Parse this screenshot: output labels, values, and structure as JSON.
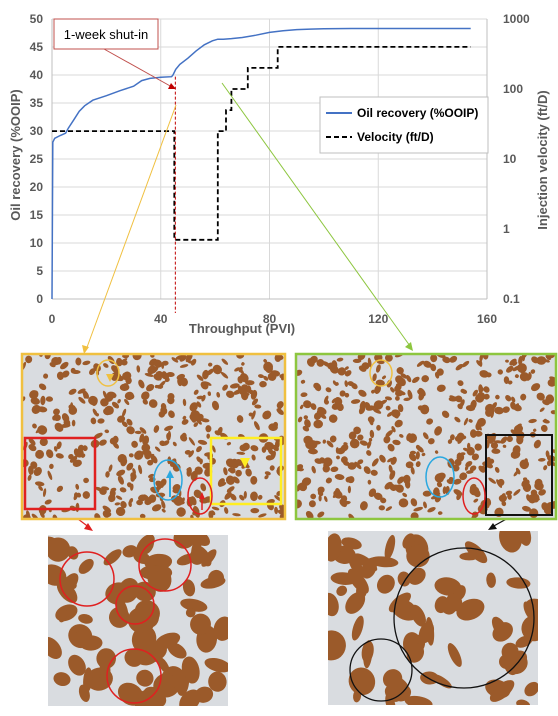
{
  "chart_data": {
    "type": "line",
    "title": "",
    "xlabel": "Throughput (PVI)",
    "ylabel": "Oil  recovery (%OOIP)",
    "y2label": "Injection velocity (ft/D)",
    "xlim": [
      0,
      160
    ],
    "ylim": [
      0,
      50
    ],
    "y2lim": [
      0.1,
      1000
    ],
    "y2scale": "log",
    "x_ticks": [
      "0",
      "40",
      "80",
      "120",
      "160"
    ],
    "y_ticks": [
      "0",
      "5",
      "10",
      "15",
      "20",
      "25",
      "30",
      "35",
      "40",
      "45",
      "50"
    ],
    "y2_ticks": [
      "0.1",
      "1",
      "10",
      "100",
      "1000"
    ],
    "grid": true,
    "legend_position": "right",
    "series": [
      {
        "name": "Oil recovery (%OOIP)",
        "axis": "left",
        "color": "#4472c4",
        "style": "solid",
        "x": [
          0,
          0.3,
          1,
          3,
          5,
          6,
          8,
          10,
          12,
          15,
          20,
          25,
          30,
          33,
          36,
          40,
          44,
          44.5,
          45.5,
          47,
          50,
          53,
          56,
          59,
          61,
          63,
          66,
          70,
          75,
          80,
          85,
          90,
          95,
          100,
          110,
          120,
          130,
          140,
          150,
          154
        ],
        "y": [
          0,
          28,
          28.7,
          29.2,
          29.6,
          30.5,
          32,
          33.5,
          34.5,
          35.5,
          36.3,
          37.2,
          38,
          39,
          39.4,
          39.6,
          39.7,
          40,
          41,
          41.9,
          43,
          44.3,
          45.4,
          46.1,
          46.4,
          46.4,
          46.5,
          46.7,
          47.1,
          47.6,
          47.9,
          48.1,
          48.2,
          48.25,
          48.3,
          48.3,
          48.3,
          48.3,
          48.3,
          48.3
        ]
      },
      {
        "name": "Velocity (ft/D)",
        "axis": "right",
        "color": "#000000",
        "style": "dashed",
        "x": [
          0,
          45,
          45,
          61,
          61,
          64,
          64,
          66,
          66,
          72,
          72,
          83,
          83,
          102,
          102,
          154
        ],
        "y": [
          25,
          25,
          0.7,
          0.7,
          25,
          25,
          50,
          50,
          100,
          100,
          200,
          200,
          400,
          400,
          400,
          400
        ]
      }
    ],
    "annotations": [
      {
        "text": "1-week shut-in",
        "x": 45
      }
    ]
  },
  "colors": {
    "oil": "#4472c4",
    "shutin_line": "#c00000",
    "callout_box": "#c0504d",
    "orange_frame": "#f0c040",
    "green_frame": "#8dc63f",
    "red_box": "#e02020",
    "yellow_box": "#ffee22",
    "black_box": "#111111",
    "blue_circle": "#2aa8e0",
    "brown_oil": "#9b5a2a",
    "grain_grey": "#d9dce0"
  }
}
